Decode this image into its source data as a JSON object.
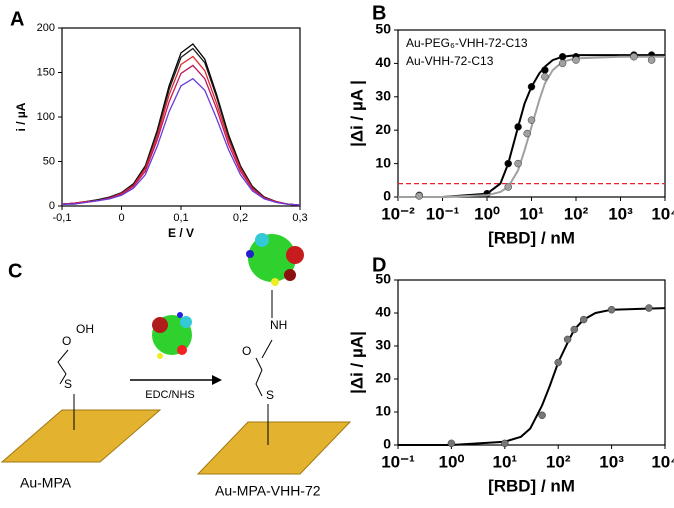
{
  "chart_data": [
    {
      "type": "line",
      "panel_label": "A",
      "xlabel": "E / V",
      "ylabel": "i / µA",
      "xlim": [
        -0.1,
        0.3
      ],
      "xticks": [
        {
          "value": -0.1,
          "label": "-0,1"
        },
        0,
        {
          "value": 0.1,
          "label": "0,1"
        },
        {
          "value": 0.2,
          "label": "0,2"
        },
        {
          "value": 0.3,
          "label": "0,3"
        }
      ],
      "ylim": [
        0,
        200
      ],
      "yticks": [
        0,
        50,
        100,
        150,
        200
      ],
      "x": [
        -0.1,
        -0.08,
        -0.06,
        -0.04,
        -0.02,
        0,
        0.02,
        0.04,
        0.06,
        0.08,
        0.1,
        0.12,
        0.14,
        0.16,
        0.18,
        0.2,
        0.22,
        0.24,
        0.26,
        0.28,
        0.3
      ],
      "series": [
        {
          "color": "#000000",
          "values": [
            2,
            3,
            5,
            7,
            10,
            15,
            25,
            45,
            85,
            135,
            172,
            182,
            165,
            125,
            80,
            45,
            22,
            10,
            5,
            2,
            1
          ]
        },
        {
          "color": "#1a1a1a",
          "values": [
            2,
            3,
            5,
            7,
            10,
            15,
            24,
            44,
            83,
            131,
            167,
            177,
            161,
            122,
            78,
            44,
            21,
            10,
            5,
            2,
            1
          ]
        },
        {
          "color": "#e0262a",
          "values": [
            2,
            3,
            5,
            6,
            9,
            14,
            23,
            42,
            78,
            125,
            159,
            168,
            152,
            115,
            74,
            42,
            20,
            9,
            5,
            2,
            1
          ]
        },
        {
          "color": "#c2185b",
          "values": [
            2,
            3,
            4,
            6,
            9,
            13,
            22,
            39,
            74,
            117,
            149,
            158,
            143,
            109,
            69,
            39,
            19,
            9,
            4,
            2,
            1
          ]
        },
        {
          "color": "#6a3cd8",
          "values": [
            2,
            2,
            4,
            6,
            8,
            12,
            20,
            35,
            67,
            106,
            135,
            143,
            130,
            98,
            63,
            35,
            17,
            8,
            4,
            2,
            1
          ]
        }
      ]
    },
    {
      "type": "scatter",
      "panel_label": "B",
      "xlabel": "[RBD] / nM",
      "ylabel": "|Δi / µA |",
      "xscale": "log",
      "xlim": [
        0.01,
        10000
      ],
      "xticks": [
        {
          "value": 0.01,
          "label": "10⁻²"
        },
        {
          "value": 0.1,
          "label": "10⁻¹"
        },
        {
          "value": 1,
          "label": "10⁰"
        },
        {
          "value": 10,
          "label": "10¹"
        },
        {
          "value": 100,
          "label": "10²"
        },
        {
          "value": 1000,
          "label": "10³"
        },
        {
          "value": 10000,
          "label": "10⁴"
        }
      ],
      "ylim": [
        0,
        50
      ],
      "yticks": [
        0,
        10,
        20,
        30,
        40,
        50
      ],
      "legend": "upper left",
      "threshold": {
        "value": 4,
        "color": "#e8262a"
      },
      "series": [
        {
          "name": "Au-PEG₆-VHH-72-C13",
          "color": "#000000",
          "x": [
            0.03,
            1,
            3,
            5,
            10,
            20,
            50,
            100,
            2000,
            5000
          ],
          "values": [
            0.5,
            1,
            10,
            21,
            33,
            38,
            42,
            42,
            42.5,
            42.5
          ],
          "fit_x": [
            0.01,
            0.1,
            1,
            2,
            3,
            5,
            7,
            10,
            15,
            20,
            30,
            50,
            100,
            1000,
            10000
          ],
          "fit_values": [
            0,
            0,
            1,
            4,
            10,
            21,
            28,
            33,
            37,
            39,
            41,
            42,
            42.5,
            42.5,
            42.5
          ]
        },
        {
          "name": "Au-VHH-72-C13",
          "color": "#a0a0a0",
          "x": [
            0.03,
            3,
            5,
            8,
            10,
            20,
            50,
            100,
            2000,
            5000
          ],
          "values": [
            0.3,
            3,
            10,
            19,
            23,
            36,
            40,
            41,
            42,
            41
          ],
          "fit_x": [
            0.01,
            0.1,
            1,
            2,
            3,
            5,
            7,
            10,
            15,
            20,
            30,
            50,
            100,
            1000,
            10000
          ],
          "fit_values": [
            0,
            0,
            0.5,
            1.5,
            3,
            8,
            14,
            21,
            29,
            34,
            38,
            40.5,
            41.5,
            42,
            42
          ]
        }
      ]
    },
    {
      "type": "scatter",
      "panel_label": "D",
      "xlabel": "[RBD] / nM",
      "ylabel": "|Δi / µA|",
      "xscale": "log",
      "xlim": [
        0.1,
        10000
      ],
      "xticks": [
        {
          "value": 0.1,
          "label": "10⁻¹"
        },
        {
          "value": 1,
          "label": "10⁰"
        },
        {
          "value": 10,
          "label": "10¹"
        },
        {
          "value": 100,
          "label": "10²"
        },
        {
          "value": 1000,
          "label": "10³"
        },
        {
          "value": 10000,
          "label": "10⁴"
        }
      ],
      "ylim": [
        0,
        50
      ],
      "yticks": [
        0,
        10,
        20,
        30,
        40,
        50
      ],
      "series": [
        {
          "color": "#777777",
          "x": [
            1,
            10,
            50,
            100,
            150,
            200,
            300,
            1000,
            5000
          ],
          "values": [
            0.5,
            0.5,
            9,
            25,
            32,
            35,
            38,
            41,
            41.5
          ],
          "fit_color": "#000000",
          "fit_x": [
            0.1,
            1,
            10,
            20,
            30,
            50,
            70,
            100,
            150,
            200,
            300,
            500,
            1000,
            10000
          ],
          "fit_values": [
            0,
            0,
            1,
            2.5,
            5,
            12,
            18,
            25,
            31,
            35,
            38,
            40,
            41,
            41.5
          ]
        }
      ]
    }
  ],
  "panel_c": {
    "label": "C",
    "reagent": "EDC/NHS",
    "left_molecule": {
      "hydroxyl": "OH",
      "carbonyl": "O",
      "sulfur": "S"
    },
    "right_molecule": {
      "amine": "NH",
      "carbonyl": "O",
      "sulfur": "S"
    },
    "left_caption": "Au-MPA",
    "right_caption": "Au-MPA-VHH-72"
  }
}
